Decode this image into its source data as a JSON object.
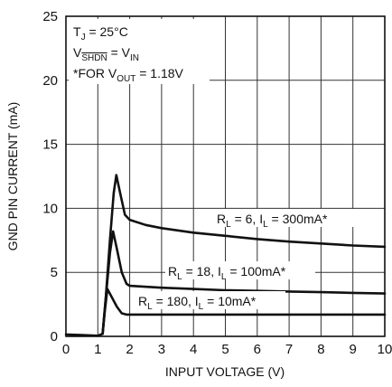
{
  "chart_data": {
    "type": "line",
    "xlabel": "INPUT VOLTAGE (V)",
    "ylabel": "GND PIN CURRENT (mA)",
    "xlim": [
      0,
      10
    ],
    "ylim": [
      0,
      25
    ],
    "x_ticks": [
      "0",
      "1",
      "2",
      "3",
      "4",
      "5",
      "6",
      "7",
      "8",
      "9",
      "10"
    ],
    "y_ticks": [
      "0",
      "5",
      "10",
      "15",
      "20",
      "25"
    ],
    "grid": true,
    "annotations": {
      "line1_T": "T",
      "line1_Tsub": "J",
      "line1_rest": " = 25°C",
      "line2_V": "V",
      "line2_Vsub": "SHDN",
      "line2_mid": " = V",
      "line2_Vsub2": "IN",
      "line3_pre": "*FOR V",
      "line3_sub": "OUT",
      "line3_rest": " = 1.18V"
    },
    "series": [
      {
        "label_pre": "R",
        "label_sub1": "L",
        "label_mid": " = 6, I",
        "label_sub2": "L",
        "label_post": " = 300mA*",
        "points": [
          [
            0,
            0.15
          ],
          [
            0.5,
            0.1
          ],
          [
            1.0,
            0.05
          ],
          [
            1.15,
            0.2
          ],
          [
            1.25,
            3.0
          ],
          [
            1.38,
            7.5
          ],
          [
            1.5,
            11.2
          ],
          [
            1.58,
            12.6
          ],
          [
            1.7,
            11.2
          ],
          [
            1.85,
            9.5
          ],
          [
            2.0,
            9.1
          ],
          [
            2.5,
            8.7
          ],
          [
            3,
            8.45
          ],
          [
            4,
            8.1
          ],
          [
            5,
            7.85
          ],
          [
            6,
            7.6
          ],
          [
            7,
            7.4
          ],
          [
            8,
            7.25
          ],
          [
            9,
            7.1
          ],
          [
            10,
            7.0
          ]
        ]
      },
      {
        "label_pre": "R",
        "label_sub1": "L",
        "label_mid": " = 18, I",
        "label_sub2": "L",
        "label_post": " = 100mA*",
        "points": [
          [
            1.15,
            0.2
          ],
          [
            1.25,
            3.0
          ],
          [
            1.38,
            6.5
          ],
          [
            1.48,
            8.2
          ],
          [
            1.6,
            6.8
          ],
          [
            1.75,
            5.0
          ],
          [
            1.9,
            4.1
          ],
          [
            2.0,
            3.95
          ],
          [
            3,
            3.8
          ],
          [
            4,
            3.7
          ],
          [
            5,
            3.6
          ],
          [
            6,
            3.55
          ],
          [
            7,
            3.5
          ],
          [
            8,
            3.45
          ],
          [
            9,
            3.4
          ],
          [
            10,
            3.35
          ]
        ]
      },
      {
        "label_pre": "R",
        "label_sub1": "L",
        "label_mid": " = 180, I",
        "label_sub2": "L",
        "label_post": " = 10mA*",
        "points": [
          [
            1.15,
            0.2
          ],
          [
            1.22,
            2.0
          ],
          [
            1.3,
            3.7
          ],
          [
            1.45,
            3.0
          ],
          [
            1.6,
            2.3
          ],
          [
            1.75,
            1.8
          ],
          [
            1.9,
            1.7
          ],
          [
            2.0,
            1.7
          ],
          [
            4,
            1.7
          ],
          [
            6,
            1.7
          ],
          [
            8,
            1.7
          ],
          [
            10,
            1.7
          ]
        ]
      }
    ]
  }
}
